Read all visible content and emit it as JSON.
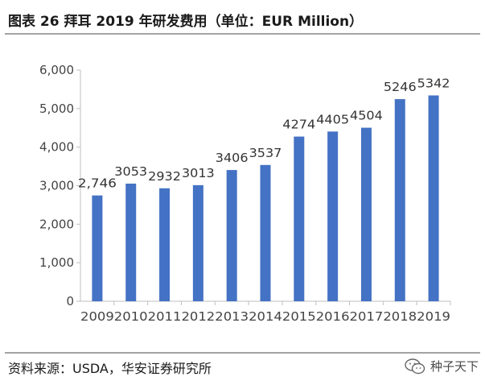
{
  "title": "图表 26 拜耳 2019 年研发费用（单位：EUR Million）",
  "source": "资料来源：USDA，华安证券研究所",
  "watermark": "种子天下",
  "icons": {
    "watermark_icon": "wechat-icon"
  },
  "colors": {
    "bar": "#4472c4",
    "axis": "#bfbfbf",
    "rule": "#a3a3a3"
  },
  "chart_data": {
    "type": "bar",
    "title": "图表 26 拜耳 2019 年研发费用（单位：EUR Million）",
    "xlabel": "",
    "ylabel": "",
    "categories": [
      "2009",
      "2010",
      "2011",
      "2012",
      "2013",
      "2014",
      "2015",
      "2016",
      "2017",
      "2018",
      "2019"
    ],
    "values": [
      2746,
      3053,
      2932,
      3013,
      3406,
      3537,
      4274,
      4405,
      4504,
      5246,
      5342
    ],
    "data_labels": [
      "2,746",
      "3053",
      "2932",
      "3013",
      "3406",
      "3537",
      "4274",
      "4405",
      "4504",
      "5246",
      "5342"
    ],
    "ylim": [
      0,
      6000
    ],
    "yticks": [
      0,
      1000,
      2000,
      3000,
      4000,
      5000,
      6000
    ],
    "ytick_labels": [
      "0",
      "1,000",
      "2,000",
      "3,000",
      "4,000",
      "5,000",
      "6,000"
    ],
    "grid": false,
    "legend": "none"
  }
}
